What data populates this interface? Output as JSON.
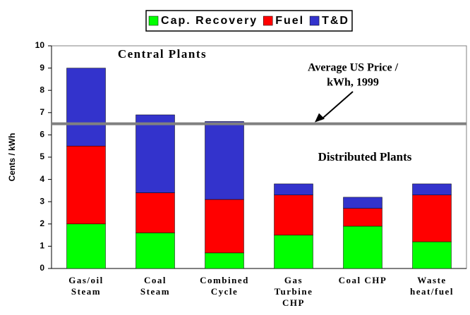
{
  "chart_data": {
    "type": "stacked_bar",
    "categories": [
      [
        "Gas/oil",
        "Steam"
      ],
      [
        "Coal",
        "Steam"
      ],
      [
        "Combined",
        "Cycle"
      ],
      [
        "Gas",
        "Turbine",
        "CHP"
      ],
      [
        "Coal CHP"
      ],
      [
        "Waste",
        "heat/fuel"
      ]
    ],
    "series": [
      {
        "name": "Cap. Recovery",
        "color": "#00ff00",
        "values": [
          2.0,
          1.6,
          0.7,
          1.5,
          1.9,
          1.2
        ]
      },
      {
        "name": "Fuel",
        "color": "#ff0000",
        "values": [
          3.5,
          1.8,
          2.4,
          1.8,
          0.8,
          2.1
        ]
      },
      {
        "name": "T&D",
        "color": "#3333cc",
        "values": [
          3.5,
          3.5,
          3.5,
          0.5,
          0.5,
          0.5
        ]
      }
    ],
    "y_label": "Cents / kWh",
    "ylim": [
      0,
      10
    ],
    "yticks": [
      0,
      1,
      2,
      3,
      4,
      5,
      6,
      7,
      8,
      9,
      10
    ],
    "reference_line": {
      "value": 6.5,
      "color": "#808080",
      "label": [
        "Average US Price /",
        "kWh, 1999"
      ]
    },
    "annotations": [
      "Central Plants",
      "Distributed Plants"
    ],
    "legend": "top",
    "grid": false
  }
}
